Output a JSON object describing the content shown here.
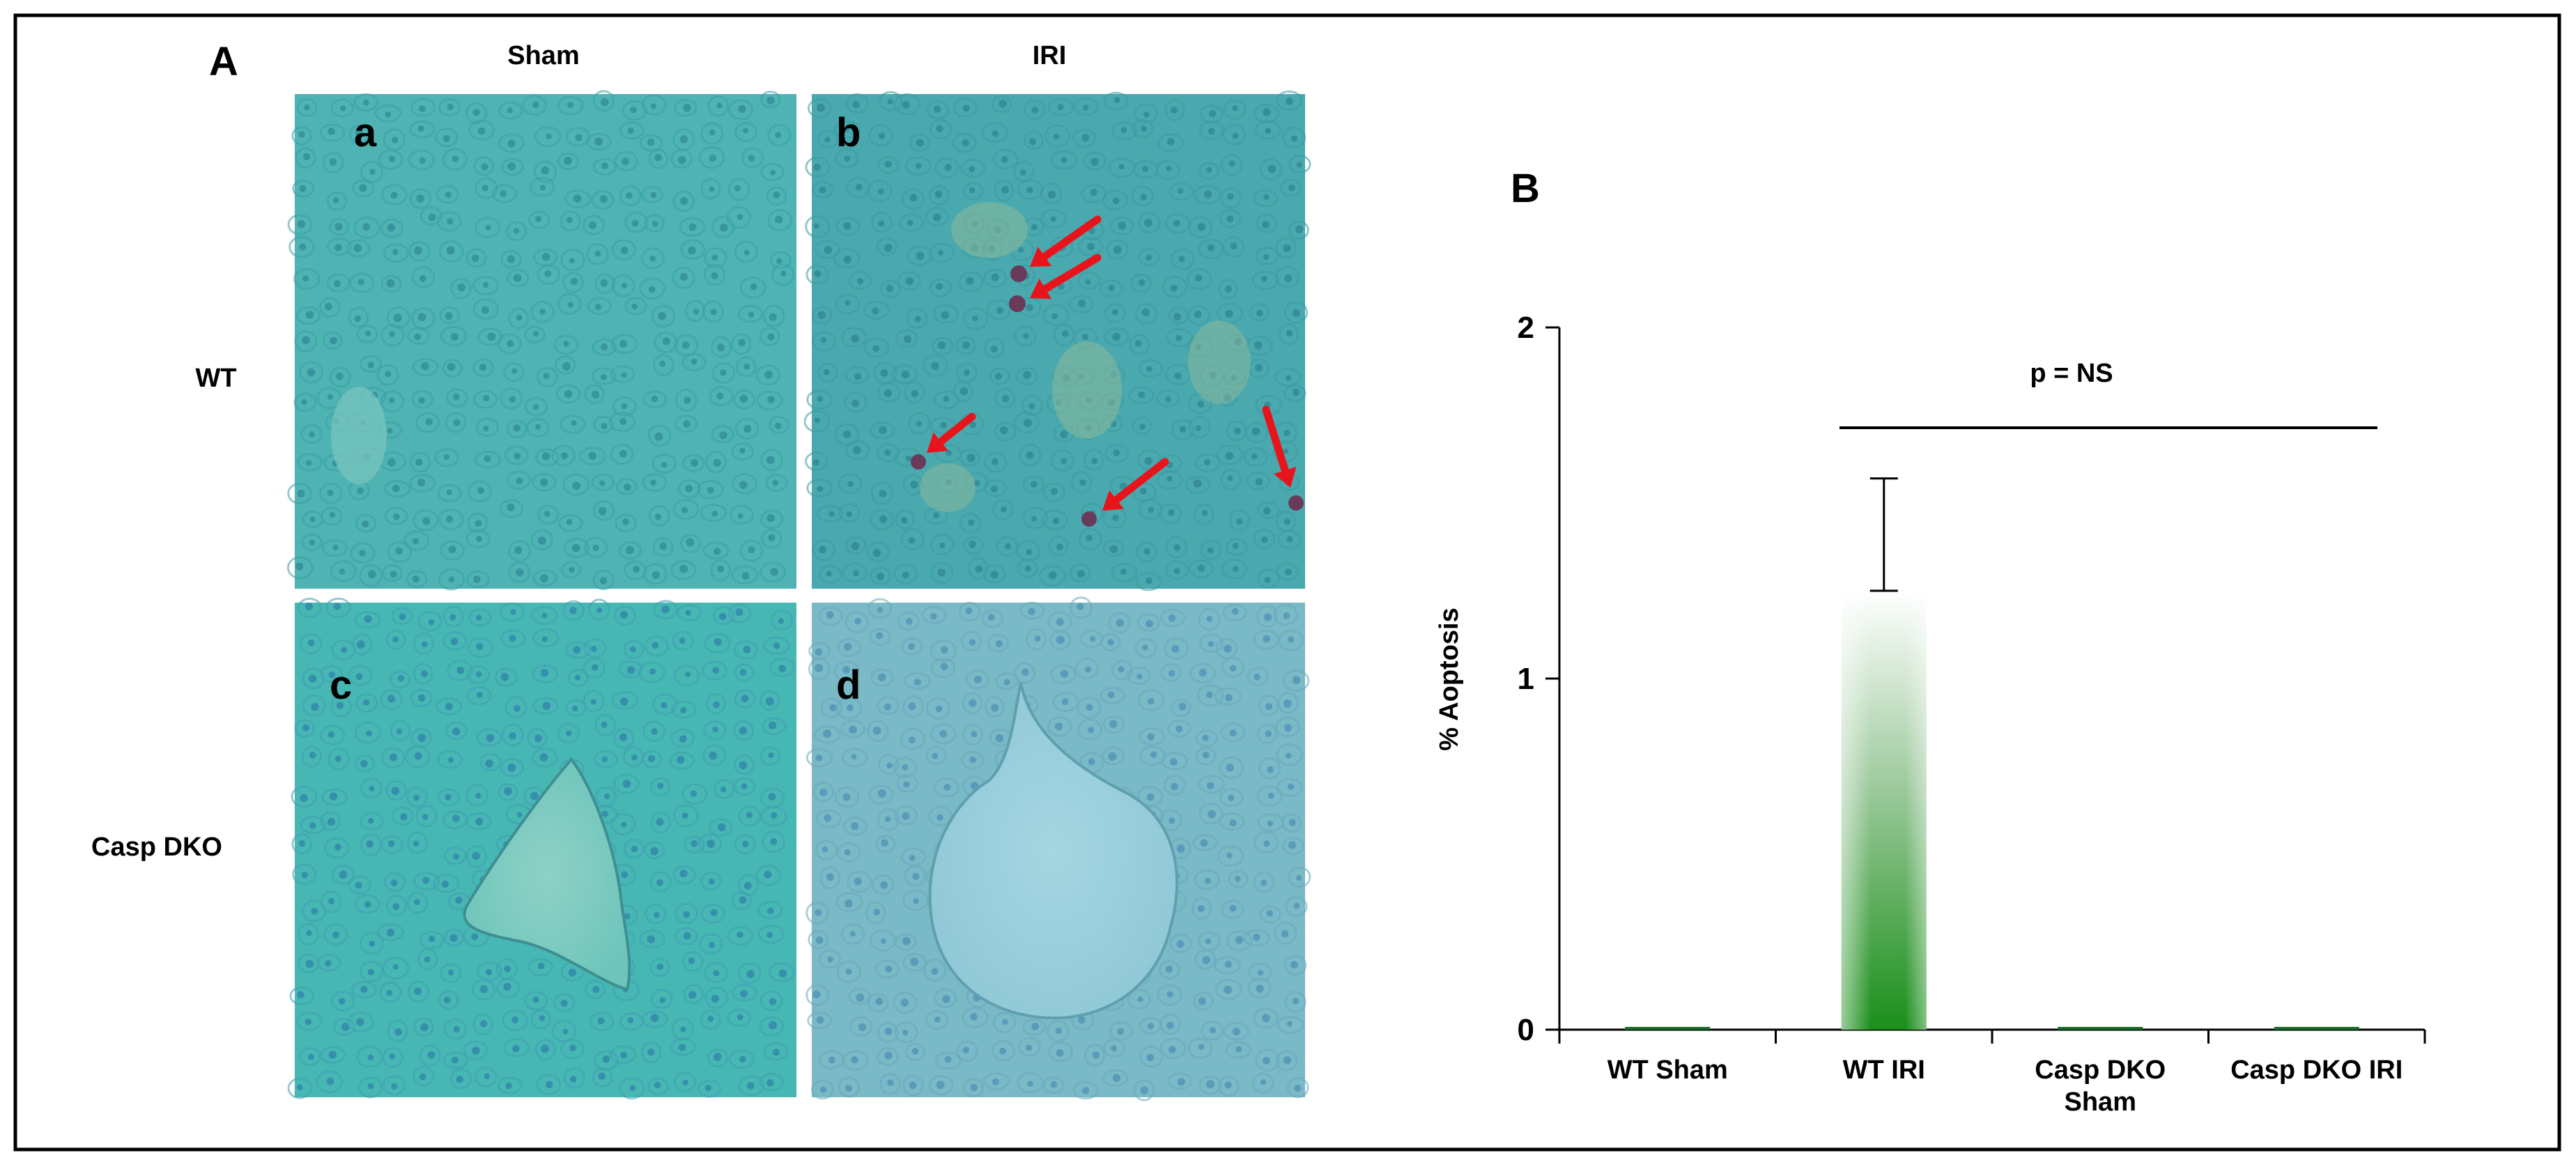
{
  "panel_a": {
    "label": "A",
    "columns": [
      "Sham",
      "IRI"
    ],
    "rows": [
      "WT",
      "Casp DKO"
    ],
    "tiles": [
      {
        "letter": "a",
        "tissue": "plain"
      },
      {
        "letter": "b",
        "tissue": "apoptotic"
      },
      {
        "letter": "c",
        "tissue": "vessel-triangle"
      },
      {
        "letter": "d",
        "tissue": "vessel-round"
      }
    ]
  },
  "panel_b": {
    "label": "B"
  },
  "colors": {
    "tissue_a": "#4fb3b3",
    "tissue_b": "#4aa9ae",
    "tissue_c": "#47b7b4",
    "tissue_d": "#7ab9c6",
    "arrow": "#e8141b",
    "bar_top": "#ffffff",
    "bar_bottom": "#1a8f1a"
  },
  "chart_data": {
    "type": "bar",
    "categories": [
      "WT Sham",
      "WT IRI",
      "Casp DKO|Sham",
      "Casp DKO IRI"
    ],
    "values": [
      0,
      1.25,
      0,
      0
    ],
    "error_upper": [
      0,
      0.32,
      0,
      0
    ],
    "ylabel": "% Aoptosis",
    "ylim": [
      0,
      2
    ],
    "yticks": [
      0,
      1,
      2
    ],
    "annotation": "p = NS",
    "grid": false
  }
}
